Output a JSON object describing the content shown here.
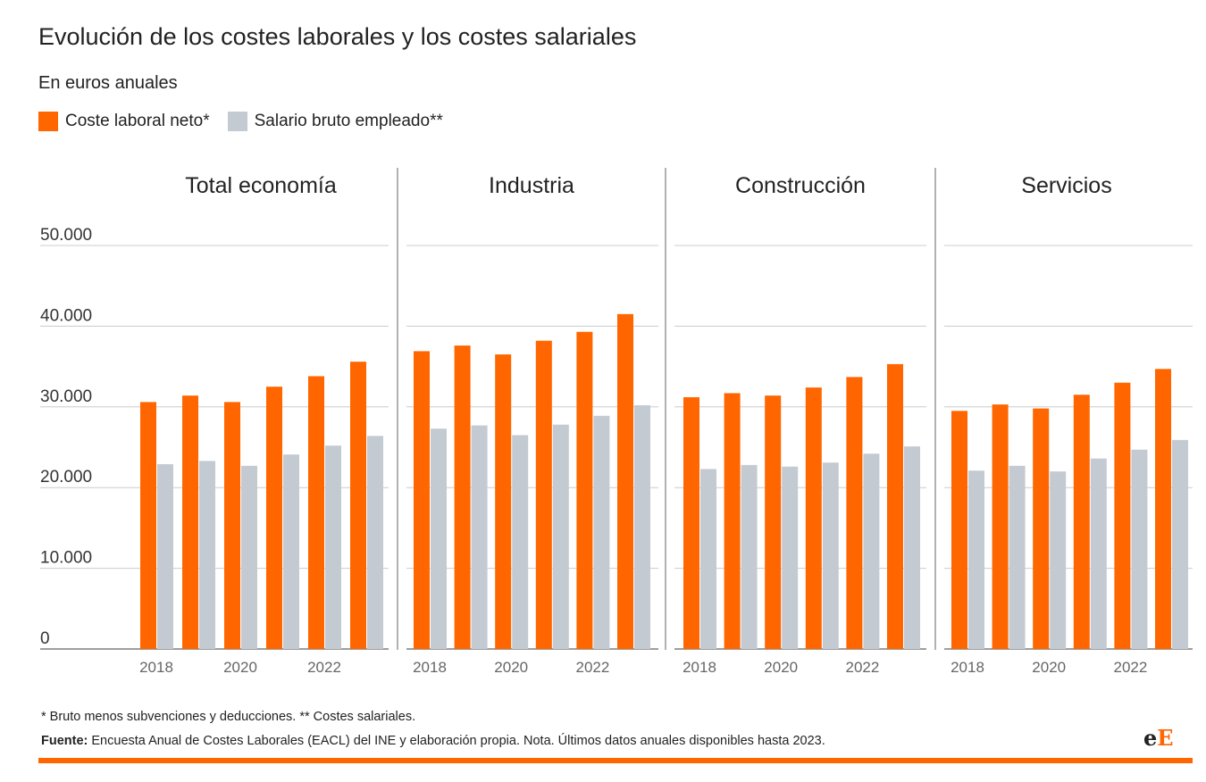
{
  "colors": {
    "orange": "#ff6600",
    "gray": "#c4cad2"
  },
  "title": "Evolución de los costes laborales y los costes salariales",
  "subtitle": "En euros anuales",
  "legend": [
    "Coste laboral neto*",
    "Salario bruto empleado**"
  ],
  "note": "* Bruto menos subvenciones y deducciones. ** Costes salariales.",
  "source_label": "Fuente:",
  "source_text": " Encuesta Anual de Costes Laborales (EACL) del INE y elaboración propia. Nota. Últimos datos anuales disponibles hasta 2023.",
  "logo": "eE",
  "chart_data": {
    "type": "bar",
    "ylim": [
      0,
      50000
    ],
    "yticks": [
      0,
      10000,
      20000,
      30000,
      40000,
      50000
    ],
    "ytick_labels": [
      "0",
      "10.000",
      "20.000",
      "30.000",
      "40.000",
      "50.000"
    ],
    "categories": [
      2018,
      2019,
      2020,
      2021,
      2022,
      2023
    ],
    "xtick_labels": [
      "2018",
      "2020",
      "2022"
    ],
    "panels": [
      {
        "title": "Total economía",
        "series": [
          {
            "name": "Coste laboral neto*",
            "values": [
              30600,
              31400,
              30600,
              32500,
              33800,
              35600
            ]
          },
          {
            "name": "Salario bruto empleado**",
            "values": [
              22900,
              23300,
              22700,
              24100,
              25200,
              26400
            ]
          }
        ]
      },
      {
        "title": "Industria",
        "series": [
          {
            "name": "Coste laboral neto*",
            "values": [
              36900,
              37600,
              36500,
              38200,
              39300,
              41500
            ]
          },
          {
            "name": "Salario bruto empleado**",
            "values": [
              27300,
              27700,
              26500,
              27800,
              28900,
              30200
            ]
          }
        ]
      },
      {
        "title": "Construcción",
        "series": [
          {
            "name": "Coste laboral neto*",
            "values": [
              31200,
              31700,
              31400,
              32400,
              33700,
              35300
            ]
          },
          {
            "name": "Salario bruto empleado**",
            "values": [
              22300,
              22800,
              22600,
              23100,
              24200,
              25100
            ]
          }
        ]
      },
      {
        "title": "Servicios",
        "series": [
          {
            "name": "Coste laboral neto*",
            "values": [
              29500,
              30300,
              29800,
              31500,
              33000,
              34700
            ]
          },
          {
            "name": "Salario bruto empleado**",
            "values": [
              22100,
              22700,
              22000,
              23600,
              24700,
              25900
            ]
          }
        ]
      }
    ]
  }
}
